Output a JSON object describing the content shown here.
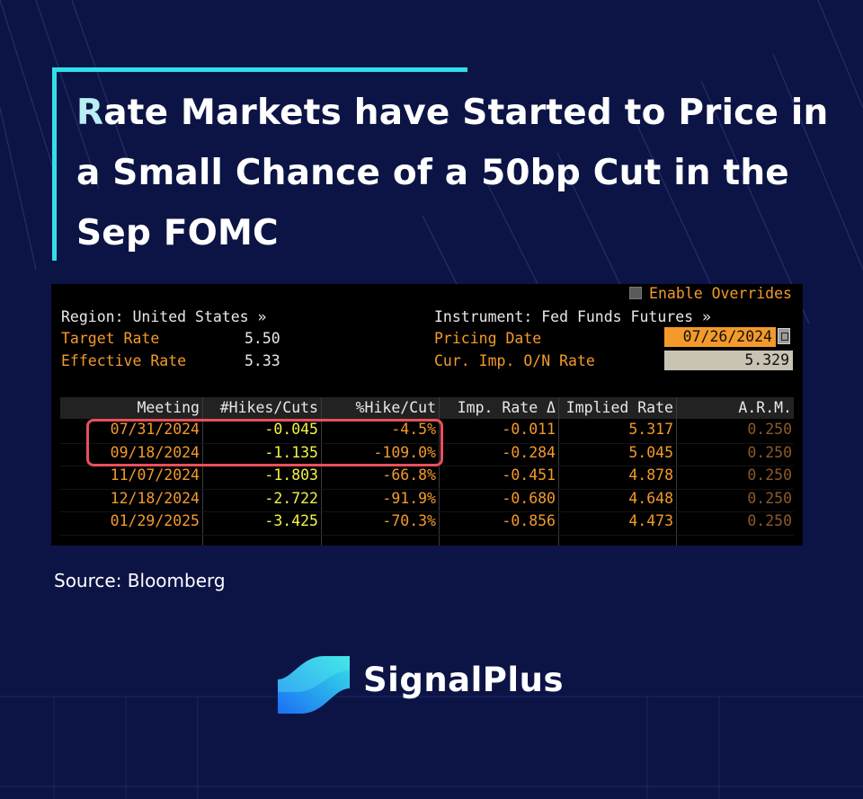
{
  "headline": {
    "first_letter": "R",
    "rest": "ate Markets have Started to Price in a Small Chance of a 50bp Cut in the Sep FOMC"
  },
  "terminal": {
    "enable_overrides": "Enable Overrides",
    "region": "Region: United States »",
    "instrument": "Instrument: Fed Funds Futures »",
    "target_rate_label": "Target Rate",
    "target_rate_value": "5.50",
    "effective_rate_label": "Effective Rate",
    "effective_rate_value": "5.33",
    "pricing_date_label": "Pricing Date",
    "pricing_date_value": "07/26/2024",
    "onrate_label": "Cur. Imp. O/N Rate",
    "onrate_value": "5.329"
  },
  "chart_data": {
    "type": "table",
    "columns": [
      "Meeting",
      "#Hikes/Cuts",
      "%Hike/Cut",
      "Imp. Rate Δ",
      "Implied Rate",
      "A.R.M."
    ],
    "rows": [
      [
        "07/31/2024",
        "-0.045",
        "-4.5%",
        "-0.011",
        "5.317",
        "0.250"
      ],
      [
        "09/18/2024",
        "-1.135",
        "-109.0%",
        "-0.284",
        "5.045",
        "0.250"
      ],
      [
        "11/07/2024",
        "-1.803",
        "-66.8%",
        "-0.451",
        "4.878",
        "0.250"
      ],
      [
        "12/18/2024",
        "-2.722",
        "-91.9%",
        "-0.680",
        "4.648",
        "0.250"
      ],
      [
        "01/29/2025",
        "-3.425",
        "-70.3%",
        "-0.856",
        "4.473",
        "0.250"
      ]
    ],
    "highlighted_rows": [
      0,
      1
    ],
    "highlight_color": "#e8505a"
  },
  "source": "Source: Bloomberg",
  "brand": "SignalPlus",
  "colors": {
    "background": "#0c1446",
    "accent": "#2ee0e8",
    "terminal_orange": "#f39a2a"
  }
}
